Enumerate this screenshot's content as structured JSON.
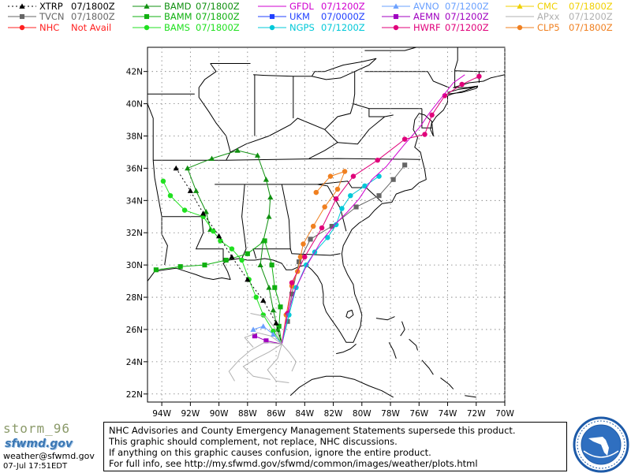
{
  "legend": {
    "models": [
      {
        "name": "XTRP",
        "time": "07/1800Z",
        "color": "#000000",
        "marker": "triangle",
        "dashed": true,
        "col": 0,
        "row": 0
      },
      {
        "name": "TVCN",
        "time": "07/1800Z",
        "color": "#666666",
        "marker": "square",
        "dashed": false,
        "col": 0,
        "row": 1
      },
      {
        "name": "NHC",
        "time": "Not Avail",
        "color": "#ff2020",
        "marker": "circle",
        "dashed": false,
        "col": 0,
        "row": 2
      },
      {
        "name": "BAMD",
        "time": "07/1800Z",
        "color": "#109010",
        "marker": "triangle",
        "dashed": false,
        "col": 1,
        "row": 0
      },
      {
        "name": "BAMM",
        "time": "07/1800Z",
        "color": "#10b010",
        "marker": "square",
        "dashed": false,
        "col": 1,
        "row": 1
      },
      {
        "name": "BAMS",
        "time": "07/1800Z",
        "color": "#20e020",
        "marker": "circle",
        "dashed": false,
        "col": 1,
        "row": 2
      },
      {
        "name": "GFDL",
        "time": "07/1200Z",
        "color": "#d000d0",
        "marker": "line",
        "dashed": false,
        "col": 2,
        "row": 0
      },
      {
        "name": "UKM",
        "time": "07/0000Z",
        "color": "#2040ff",
        "marker": "square",
        "dashed": false,
        "col": 2,
        "row": 1
      },
      {
        "name": "NGPS",
        "time": "07/1200Z",
        "color": "#00c8d8",
        "marker": "circle",
        "dashed": false,
        "col": 2,
        "row": 2
      },
      {
        "name": "AVNO",
        "time": "07/1200Z",
        "color": "#6aa0ff",
        "marker": "triangle",
        "dashed": false,
        "col": 3,
        "row": 0
      },
      {
        "name": "AEMN",
        "time": "07/1200Z",
        "color": "#a000c0",
        "marker": "square",
        "dashed": false,
        "col": 3,
        "row": 1
      },
      {
        "name": "HWRF",
        "time": "07/1200Z",
        "color": "#e0007a",
        "marker": "circle",
        "dashed": false,
        "col": 3,
        "row": 2
      },
      {
        "name": "CMC",
        "time": "07/1800Z",
        "color": "#f0d000",
        "marker": "triangle",
        "dashed": false,
        "col": 4,
        "row": 0
      },
      {
        "name": "APxx",
        "time": "07/1200Z",
        "color": "#b0b0b0",
        "marker": "line",
        "dashed": false,
        "col": 4,
        "row": 1
      },
      {
        "name": "CLP5",
        "time": "07/1800Z",
        "color": "#f08020",
        "marker": "circle",
        "dashed": false,
        "col": 4,
        "row": 2
      }
    ]
  },
  "map": {
    "lat_range": [
      21.5,
      43.5
    ],
    "lon_range": [
      -95,
      -70
    ],
    "lat_ticks": [
      "22N",
      "24N",
      "26N",
      "28N",
      "30N",
      "32N",
      "34N",
      "36N",
      "38N",
      "40N",
      "42N"
    ],
    "lon_ticks": [
      "94W",
      "92W",
      "90W",
      "88W",
      "86W",
      "84W",
      "82W",
      "80W",
      "78W",
      "76W",
      "74W",
      "72W",
      "70W"
    ],
    "grid": "dotted"
  },
  "tracks": [
    {
      "model": "BAMD",
      "color": "#109010",
      "marker": "triangle",
      "points": [
        [
          -85.6,
          25.1
        ],
        [
          -85.9,
          26.0
        ],
        [
          -86.2,
          27.2
        ],
        [
          -86.5,
          28.6
        ],
        [
          -87.1,
          30.0
        ],
        [
          -86.9,
          31.5
        ],
        [
          -86.5,
          33.0
        ],
        [
          -86.4,
          34.2
        ],
        [
          -86.7,
          35.3
        ],
        [
          -87.3,
          36.8
        ],
        [
          -88.7,
          37.1
        ],
        [
          -90.5,
          36.6
        ],
        [
          -92.2,
          36.0
        ],
        [
          -91.6,
          34.6
        ],
        [
          -90.9,
          33.3
        ],
        [
          -90.6,
          32.2
        ]
      ]
    },
    {
      "model": "BAMM",
      "color": "#10b010",
      "marker": "square",
      "points": [
        [
          -85.6,
          25.1
        ],
        [
          -85.8,
          26.2
        ],
        [
          -85.7,
          27.4
        ],
        [
          -86.1,
          28.6
        ],
        [
          -86.3,
          30.0
        ],
        [
          -86.8,
          31.5
        ],
        [
          -88.0,
          30.7
        ],
        [
          -89.5,
          30.3
        ],
        [
          -91.0,
          30.0
        ],
        [
          -92.7,
          29.9
        ],
        [
          -94.4,
          29.7
        ]
      ]
    },
    {
      "model": "BAMS",
      "color": "#20e020",
      "marker": "circle",
      "points": [
        [
          -85.6,
          25.1
        ],
        [
          -86.2,
          25.9
        ],
        [
          -86.9,
          26.9
        ],
        [
          -87.4,
          28.0
        ],
        [
          -87.9,
          29.1
        ],
        [
          -88.4,
          30.3
        ],
        [
          -89.1,
          31.0
        ],
        [
          -89.9,
          31.5
        ],
        [
          -90.4,
          32.1
        ],
        [
          -91.1,
          33.0
        ],
        [
          -92.4,
          33.4
        ],
        [
          -93.4,
          34.3
        ],
        [
          -93.9,
          35.2
        ]
      ]
    },
    {
      "model": "XTRP",
      "color": "#000000",
      "marker": "triangle",
      "dashed": true,
      "points": [
        [
          -85.6,
          25.1
        ],
        [
          -86.0,
          26.4
        ],
        [
          -86.9,
          27.8
        ],
        [
          -88.0,
          29.1
        ],
        [
          -89.1,
          30.5
        ],
        [
          -90.0,
          31.8
        ],
        [
          -91.1,
          33.2
        ],
        [
          -92.0,
          34.6
        ],
        [
          -93.0,
          36.0
        ]
      ]
    },
    {
      "model": "TVCN",
      "color": "#666666",
      "marker": "square",
      "points": [
        [
          -85.6,
          25.1
        ],
        [
          -85.2,
          26.5
        ],
        [
          -84.9,
          28.2
        ],
        [
          -84.4,
          30.2
        ],
        [
          -83.6,
          31.6
        ],
        [
          -82.1,
          32.4
        ],
        [
          -80.4,
          33.6
        ],
        [
          -78.8,
          34.3
        ],
        [
          -77.8,
          35.3
        ],
        [
          -77.0,
          36.2
        ]
      ]
    },
    {
      "model": "CLP5",
      "color": "#f08020",
      "marker": "circle",
      "points": [
        [
          -85.6,
          25.1
        ],
        [
          -85.3,
          26.9
        ],
        [
          -84.9,
          28.7
        ],
        [
          -84.5,
          29.6
        ],
        [
          -84.3,
          30.5
        ],
        [
          -84.1,
          31.3
        ],
        [
          -83.4,
          32.4
        ],
        [
          -82.6,
          33.6
        ],
        [
          -81.7,
          34.7
        ],
        [
          -81.2,
          35.8
        ],
        [
          -82.2,
          35.5
        ],
        [
          -83.2,
          34.5
        ]
      ]
    },
    {
      "model": "HWRF",
      "color": "#e0007a",
      "marker": "circle",
      "points": [
        [
          -85.6,
          25.1
        ],
        [
          -85.2,
          27.0
        ],
        [
          -84.9,
          28.9
        ],
        [
          -84.0,
          30.5
        ],
        [
          -82.8,
          32.3
        ],
        [
          -81.8,
          34.1
        ],
        [
          -80.6,
          35.5
        ],
        [
          -78.9,
          36.5
        ],
        [
          -77.0,
          37.8
        ],
        [
          -75.6,
          38.1
        ],
        [
          -75.1,
          39.3
        ],
        [
          -74.2,
          40.5
        ],
        [
          -73.0,
          41.2
        ],
        [
          -71.8,
          41.7
        ]
      ]
    },
    {
      "model": "NGPS",
      "color": "#00c8d8",
      "marker": "circle",
      "points": [
        [
          -85.6,
          25.1
        ],
        [
          -85.1,
          26.9
        ],
        [
          -84.6,
          28.6
        ],
        [
          -83.9,
          30.0
        ],
        [
          -83.3,
          30.8
        ],
        [
          -82.4,
          31.7
        ],
        [
          -81.8,
          32.5
        ],
        [
          -81.4,
          33.5
        ],
        [
          -80.8,
          34.3
        ],
        [
          -79.8,
          34.9
        ],
        [
          -78.8,
          35.5
        ]
      ]
    },
    {
      "model": "GFDL",
      "color": "#d000d0",
      "marker": "line",
      "points": [
        [
          -85.6,
          25.1
        ],
        [
          -85.3,
          26.6
        ],
        [
          -84.7,
          28.4
        ],
        [
          -83.9,
          29.9
        ],
        [
          -82.9,
          31.4
        ],
        [
          -81.9,
          32.5
        ],
        [
          -81.0,
          33.3
        ],
        [
          -80.2,
          34.1
        ],
        [
          -79.3,
          35.3
        ],
        [
          -78.3,
          36.1
        ],
        [
          -77.0,
          37.5
        ],
        [
          -75.9,
          38.6
        ],
        [
          -75.3,
          39.4
        ],
        [
          -74.5,
          40.3
        ],
        [
          -73.6,
          41.3
        ],
        [
          -72.8,
          41.8
        ]
      ]
    },
    {
      "model": "AEMN",
      "color": "#a000c0",
      "marker": "square",
      "points": [
        [
          -85.6,
          25.1
        ],
        [
          -86.7,
          25.3
        ],
        [
          -87.5,
          25.6
        ]
      ]
    },
    {
      "model": "AVNO",
      "color": "#6aa0ff",
      "marker": "triangle",
      "points": [
        [
          -85.6,
          25.1
        ],
        [
          -86.2,
          25.7
        ],
        [
          -86.9,
          26.2
        ],
        [
          -87.6,
          26.0
        ]
      ]
    },
    {
      "model": "APxx",
      "color": "#b0b0b0",
      "marker": "line",
      "points": [
        [
          -85.6,
          25.1
        ],
        [
          -86.5,
          24.6
        ],
        [
          -87.4,
          24.2
        ],
        [
          -88.3,
          23.7
        ],
        [
          -87.6,
          23.1
        ],
        [
          -86.4,
          22.9
        ]
      ]
    },
    {
      "model": "APxx",
      "color": "#b0b0b0",
      "marker": "line",
      "points": [
        [
          -85.6,
          25.1
        ],
        [
          -86.8,
          25.2
        ],
        [
          -87.8,
          24.7
        ],
        [
          -88.6,
          24.1
        ],
        [
          -89.3,
          23.4
        ],
        [
          -88.9,
          22.8
        ]
      ]
    },
    {
      "model": "APxx",
      "color": "#b0b0b0",
      "marker": "line",
      "points": [
        [
          -85.6,
          25.1
        ],
        [
          -86.4,
          25.6
        ],
        [
          -87.3,
          25.8
        ],
        [
          -88.2,
          25.5
        ],
        [
          -87.6,
          24.9
        ]
      ]
    },
    {
      "model": "APxx",
      "color": "#b0b0b0",
      "marker": "line",
      "points": [
        [
          -85.6,
          25.1
        ],
        [
          -85.9,
          24.2
        ],
        [
          -86.6,
          23.5
        ],
        [
          -86.0,
          22.8
        ],
        [
          -85.1,
          22.7
        ]
      ]
    },
    {
      "model": "APxx",
      "color": "#b0b0b0",
      "marker": "line",
      "points": [
        [
          -85.6,
          25.1
        ],
        [
          -85.1,
          24.6
        ],
        [
          -84.6,
          24.0
        ],
        [
          -84.9,
          23.4
        ]
      ]
    },
    {
      "model": "APxx",
      "color": "#b0b0b0",
      "marker": "line",
      "points": [
        [
          -85.6,
          25.1
        ],
        [
          -86.1,
          26.1
        ],
        [
          -86.7,
          26.8
        ],
        [
          -87.8,
          27.0
        ]
      ]
    }
  ],
  "footer": {
    "storm_name": "storm_96",
    "site_logo": "sfwmd.gov",
    "contact": "weather@sfwmd.gov",
    "timestamp": "07-Jul 17:51EDT",
    "disclaimer_lines": [
      "NHC Advisories and County Emergency Management Statements supersede this product.",
      "This graphic should complement, not replace, NHC discussions.",
      "If anything on this graphic causes confusion, ignore the entire product.",
      "For full info, see  http://my.sfwmd.gov/sfwmd/common/images/weather/plots.html"
    ]
  }
}
